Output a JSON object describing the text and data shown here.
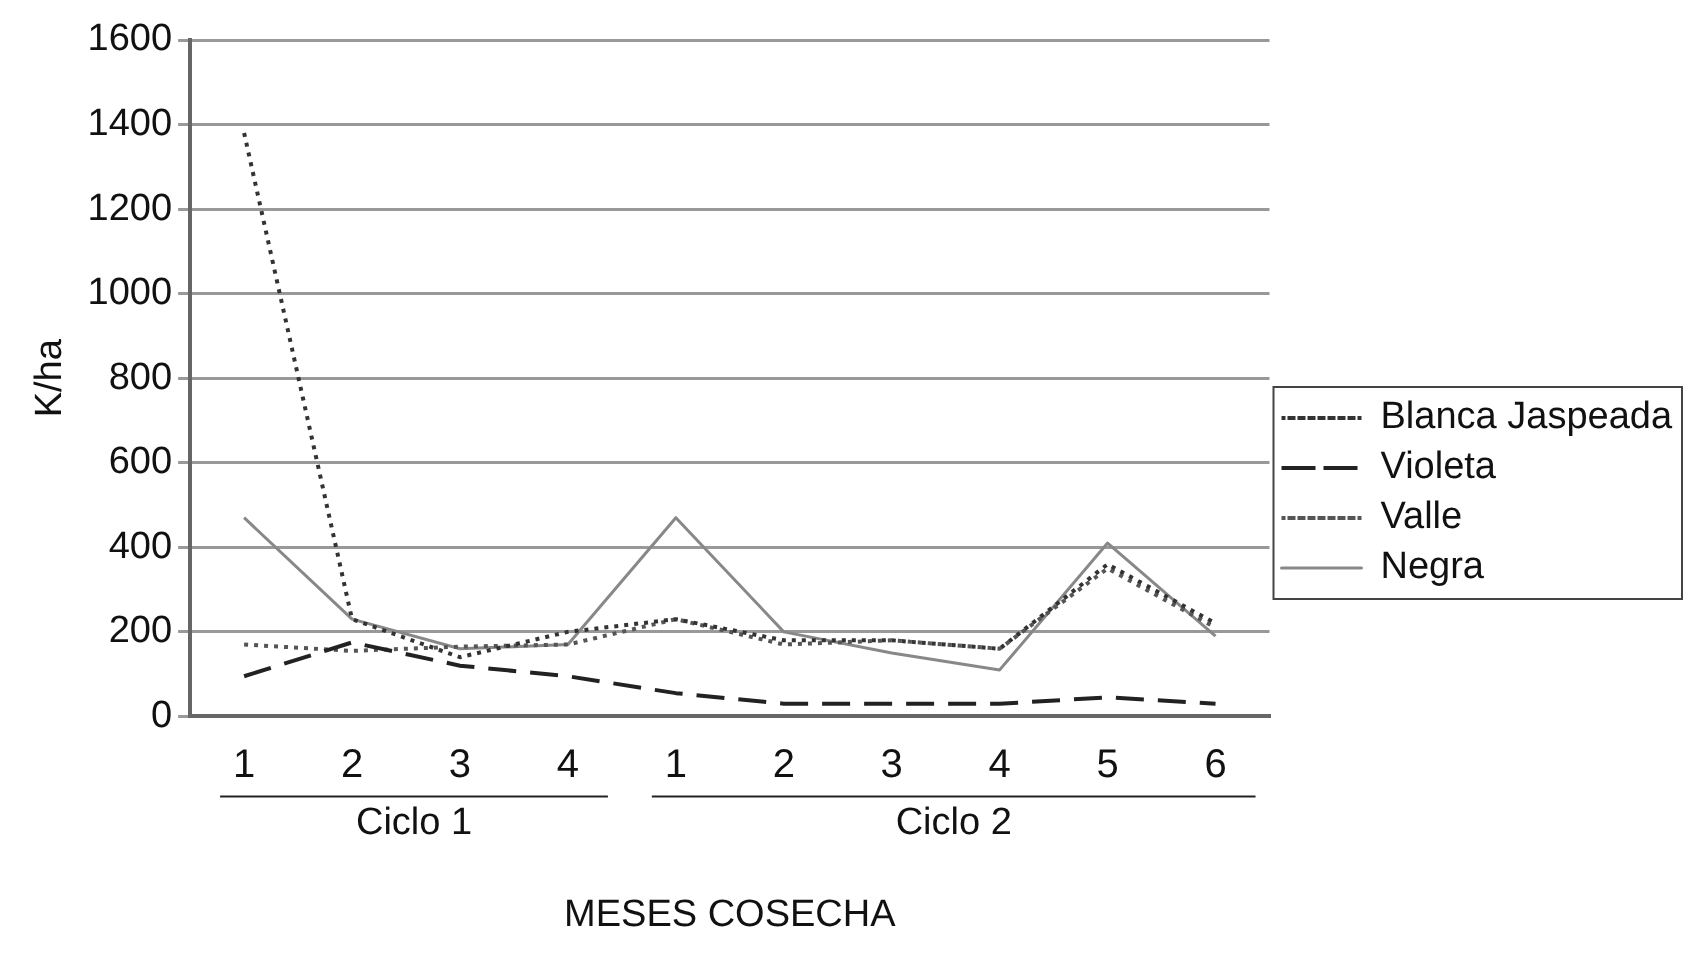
{
  "chart_data": {
    "type": "line",
    "xlabel": "MESES COSECHA",
    "ylabel": "K/ha",
    "categories": [
      "1",
      "2",
      "3",
      "4",
      "1",
      "2",
      "3",
      "4",
      "5",
      "6"
    ],
    "series": [
      {
        "name": "Blanca Jaspeada",
        "color": "#333333",
        "line_style": "dotted",
        "values": [
          1380,
          230,
          140,
          200,
          230,
          180,
          180,
          160,
          360,
          220
        ]
      },
      {
        "name": "Violeta",
        "color": "#222222",
        "line_style": "dashed",
        "values": [
          95,
          175,
          120,
          95,
          55,
          30,
          30,
          30,
          45,
          30
        ]
      },
      {
        "name": "Valle",
        "color": "#555555",
        "line_style": "dotted",
        "values": [
          170,
          155,
          165,
          170,
          230,
          170,
          180,
          160,
          350,
          210
        ]
      },
      {
        "name": "Negra",
        "color": "#888888",
        "line_style": "solid",
        "values": [
          470,
          230,
          160,
          170,
          470,
          200,
          150,
          110,
          410,
          190
        ]
      }
    ],
    "ylim": [
      0,
      1600
    ],
    "yticks": [
      0,
      200,
      400,
      600,
      800,
      1000,
      1200,
      1400,
      1600
    ],
    "grid": "y",
    "legend": "right",
    "marker": "none",
    "annotations": [
      "Ciclo 1",
      "Ciclo 2"
    ]
  }
}
